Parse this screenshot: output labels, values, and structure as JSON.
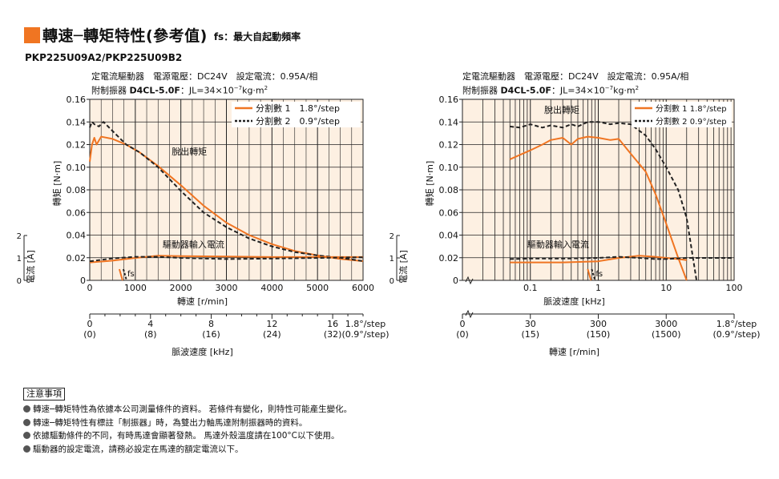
{
  "header": {
    "title": "轉速─轉矩特性(參考值)",
    "fs_note": "fs：最大自起動頻率",
    "accent": "#f07522",
    "model": "PKP225U09A2/PKP225U09B2"
  },
  "conditions": {
    "line1": "定電流驅動器　電源電壓：DC24V　設定電流：0.95A/相",
    "line2_prefix": "附制振器",
    "line2_bold": "D4CL-5.0F",
    "line2_inertia": "：JL=34×10",
    "line2_exp": "−7",
    "line2_unit": "kg·m",
    "line2_sq": "2"
  },
  "colors": {
    "orange": "#f07522",
    "grid_bg": "#fdf0e2",
    "dark": "#222222"
  },
  "chart_data": [
    {
      "type": "line",
      "panel": "left",
      "title": "轉速─轉矩特性(參考值)",
      "xlabel": "轉速 [r/min]",
      "ylabel": "轉矩 [N·m]",
      "ylabel2": "電流 [A]",
      "x_scale": "linear",
      "xlim": [
        0,
        6000
      ],
      "ylim": [
        0,
        0.16
      ],
      "xticks": [
        0,
        1000,
        2000,
        3000,
        4000,
        5000,
        6000
      ],
      "xticklabels": [
        "0",
        "1000",
        "2000",
        "3000",
        "4000",
        "5000",
        "6000"
      ],
      "yticks": [
        0,
        0.02,
        0.04,
        0.06,
        0.08,
        0.1,
        0.12,
        0.14,
        0.16
      ],
      "yticklabels": [
        "0",
        "0.02",
        "0.04",
        "0.06",
        "0.08",
        "0.10",
        "0.12",
        "0.14",
        "0.16"
      ],
      "current_ticks": [
        "0",
        "1",
        "2"
      ],
      "current_ylim": [
        0,
        2
      ],
      "grid": true,
      "legend_position": "top-right",
      "legend": [
        "分割數 1　1.8°/step",
        "分割數 2　0.9°/step"
      ],
      "annotations": [
        "脫出轉矩",
        "驅動器輸入電流",
        "fs"
      ],
      "fs_value": 650,
      "secondary_axis": {
        "label": "脈波速度 [kHz]",
        "ticks": [
          "0",
          "4",
          "8",
          "12",
          "16",
          "1.8°/step"
        ],
        "ticks2": [
          "(0)",
          "(8)",
          "(16)",
          "(24)",
          "(32)",
          "(0.9°/step)"
        ]
      },
      "series": [
        {
          "name": "分割數 1　1.8°/step",
          "role": "pullout_torque",
          "color": "#f07522",
          "style": "solid",
          "x": [
            0,
            50,
            100,
            150,
            250,
            500,
            800,
            1100,
            1500,
            2000,
            2500,
            3000,
            3500,
            4000,
            4500,
            5000,
            5500,
            6000
          ],
          "y": [
            0.105,
            0.12,
            0.126,
            0.12,
            0.127,
            0.125,
            0.12,
            0.113,
            0.101,
            0.084,
            0.066,
            0.051,
            0.04,
            0.032,
            0.026,
            0.022,
            0.019,
            0.017
          ]
        },
        {
          "name": "分割數 2　0.9°/step",
          "role": "pullout_torque",
          "color": "#222222",
          "style": "dashed",
          "x": [
            0,
            50,
            100,
            200,
            300,
            500,
            800,
            1100,
            1500,
            2000,
            2500,
            3000,
            3500,
            4000,
            4500,
            5000,
            5500,
            6000
          ],
          "y": [
            0.135,
            0.14,
            0.138,
            0.136,
            0.14,
            0.132,
            0.12,
            0.113,
            0.1,
            0.079,
            0.06,
            0.047,
            0.037,
            0.03,
            0.025,
            0.022,
            0.02,
            0.017
          ]
        },
        {
          "name": "分割數 1　1.8°/step",
          "role": "input_current",
          "color": "#f07522",
          "style": "solid",
          "x": [
            0,
            500,
            1000,
            1500,
            2000,
            3000,
            4000,
            5000,
            6000
          ],
          "y": [
            0.8,
            0.88,
            1.0,
            1.1,
            1.08,
            1.06,
            1.04,
            1.04,
            1.04
          ]
        },
        {
          "name": "分割數 2　0.9°/step",
          "role": "input_current",
          "color": "#222222",
          "style": "dashed",
          "x": [
            0,
            500,
            1000,
            1500,
            2000,
            3000,
            4000,
            5000,
            6000
          ],
          "y": [
            0.85,
            0.98,
            1.05,
            1.05,
            1.0,
            0.95,
            0.97,
            1.0,
            1.03
          ]
        }
      ]
    },
    {
      "type": "line",
      "panel": "right",
      "title": "",
      "xlabel": "脈波速度 [kHz]",
      "ylabel": "轉矩 [N·m]",
      "ylabel2": "電流 [A]",
      "x_scale": "log",
      "xlim": [
        0.01,
        100
      ],
      "ylim": [
        0,
        0.16
      ],
      "xticks": [
        0.1,
        1,
        10,
        100
      ],
      "xticklabels": [
        "0.1",
        "1",
        "10",
        "100"
      ],
      "yticks": [
        0,
        0.02,
        0.04,
        0.06,
        0.08,
        0.1,
        0.12,
        0.14,
        0.16
      ],
      "yticklabels": [
        "0",
        "0.02",
        "0.04",
        "0.06",
        "0.08",
        "0.10",
        "0.12",
        "0.14",
        "0.16"
      ],
      "current_ticks": [
        "0",
        "1",
        "2"
      ],
      "current_ylim": [
        0,
        2
      ],
      "grid": true,
      "legend_position": "top-right",
      "legend": [
        "分割數 1  1.8°/step",
        "分割數 2  0.9°/step"
      ],
      "annotations": [
        "脫出轉矩",
        "驅動器輸入電流",
        "fs"
      ],
      "fs_value": 0.7,
      "secondary_axis": {
        "label": "轉速 [r/min]",
        "ticks": [
          "0",
          "30",
          "300",
          "3000",
          "1.8°/step"
        ],
        "ticks2": [
          "(0)",
          "(15)",
          "(150)",
          "(1500)",
          "(0.9°/step)"
        ]
      },
      "series": [
        {
          "name": "分割數 1  1.8°/step",
          "role": "pullout_torque",
          "color": "#f07522",
          "style": "solid",
          "x": [
            0.05,
            0.1,
            0.15,
            0.2,
            0.3,
            0.4,
            0.5,
            0.7,
            1,
            1.5,
            2,
            3,
            5,
            7,
            10,
            15,
            20
          ],
          "y": [
            0.107,
            0.115,
            0.12,
            0.124,
            0.126,
            0.12,
            0.125,
            0.127,
            0.126,
            0.124,
            0.125,
            0.112,
            0.096,
            0.076,
            0.05,
            0.02,
            0.0
          ]
        },
        {
          "name": "分割數 2  0.9°/step",
          "role": "pullout_torque",
          "color": "#222222",
          "style": "dashed",
          "x": [
            0.05,
            0.07,
            0.1,
            0.15,
            0.2,
            0.3,
            0.4,
            0.5,
            0.7,
            1,
            1.5,
            2,
            3,
            5,
            7,
            10,
            15,
            20,
            28
          ],
          "y": [
            0.136,
            0.135,
            0.138,
            0.135,
            0.137,
            0.135,
            0.138,
            0.136,
            0.14,
            0.14,
            0.138,
            0.139,
            0.138,
            0.128,
            0.116,
            0.1,
            0.08,
            0.055,
            0.0
          ]
        },
        {
          "name": "分割數 1  1.8°/step",
          "role": "input_current",
          "color": "#f07522",
          "style": "solid",
          "x": [
            0.05,
            0.1,
            0.3,
            1,
            2,
            4,
            7,
            10,
            15,
            20
          ],
          "y": [
            0.8,
            0.8,
            0.8,
            0.85,
            1.0,
            1.1,
            1.05,
            1.0,
            0.95,
            0.9
          ]
        },
        {
          "name": "分割數 2  0.9°/step",
          "role": "input_current",
          "color": "#222222",
          "style": "dashed",
          "x": [
            0.05,
            0.1,
            0.3,
            1,
            2,
            4,
            7,
            10,
            20,
            40,
            100
          ],
          "y": [
            0.95,
            0.97,
            0.97,
            1.0,
            1.05,
            1.0,
            0.95,
            0.95,
            1.0,
            1.0,
            1.0
          ]
        }
      ]
    }
  ],
  "notes": {
    "heading": "注意事項",
    "items": [
      "轉速─轉矩特性為依據本公司測量條件的資料。 若條件有變化，則特性可能產生變化。",
      "轉速─轉矩特性有標註「制振器」時，為雙出力軸馬達附制振器時的資料。",
      "依據驅動條件的不同，有時馬達會顯著發熱。 馬達外殼溫度請在100°C以下使用。",
      "驅動器的設定電流，請務必設定在馬達的額定電流以下。"
    ]
  }
}
